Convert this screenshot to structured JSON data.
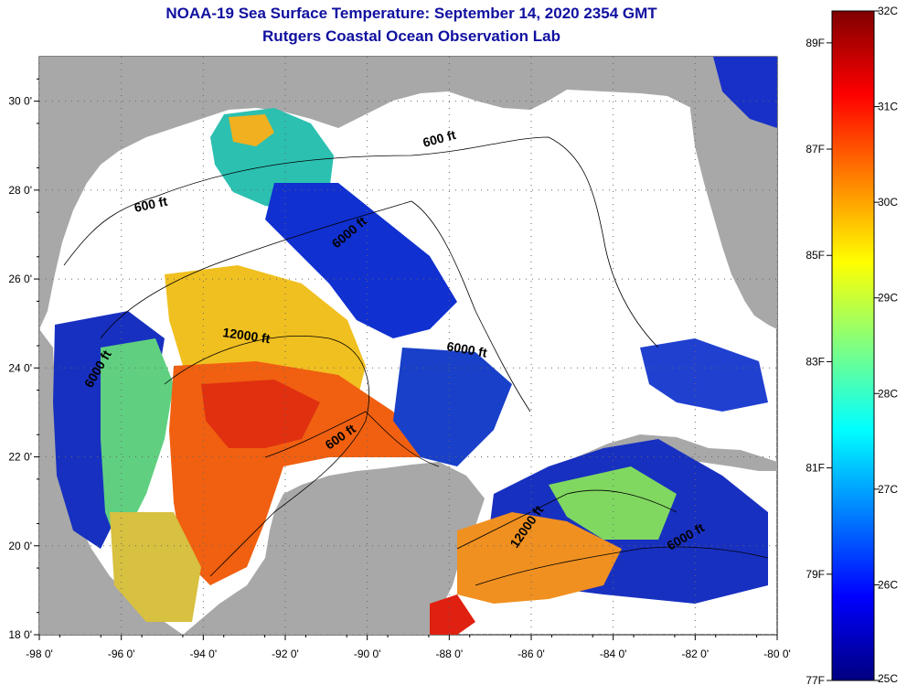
{
  "header": {
    "title": "NOAA-19 Sea Surface Temperature:  September 14, 2020 2354 GMT",
    "subtitle": "Rutgers Coastal Ocean Observation Lab"
  },
  "map": {
    "lon_ticks": [
      "-98 0'",
      "-96 0'",
      "-94 0'",
      "-92 0'",
      "-90 0'",
      "-88 0'",
      "-86 0'",
      "-84 0'",
      "-82 0'",
      "-80 0'"
    ],
    "lat_ticks": [
      "30 0'",
      "28 0'",
      "26 0'",
      "24 0'",
      "22 0'",
      "20 0'",
      "18 0'"
    ],
    "lon_range": [
      -98,
      -80
    ],
    "lat_range": [
      18,
      31
    ],
    "contour_labels": [
      "600 ft",
      "600 ft",
      "6000 ft",
      "12000 ft",
      "6000 ft",
      "6000 ft",
      "600 ft",
      "12000 ft",
      "6000 ft"
    ],
    "colors": {
      "land": "#a8a8a8",
      "no_data": "#ffffff",
      "grid": "#555555"
    }
  },
  "colorbar": {
    "celsius_labels": [
      "32C",
      "31C",
      "30C",
      "29C",
      "28C",
      "27C",
      "26C",
      "25C"
    ],
    "fahrenheit_labels": [
      "89F",
      "87F",
      "85F",
      "83F",
      "81F",
      "79F",
      "77F"
    ],
    "range_c": [
      25,
      32
    ],
    "stops": [
      "#000080",
      "#0000ff",
      "#0080ff",
      "#00ffff",
      "#80ff80",
      "#ffff00",
      "#ff8000",
      "#ff0000",
      "#800000"
    ]
  }
}
